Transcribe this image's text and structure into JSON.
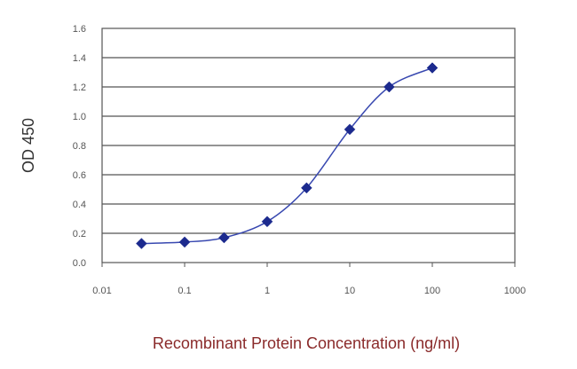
{
  "chart_data": {
    "type": "scatter",
    "title": "",
    "xlabel": "Recombinant Protein Concentration (ng/ml)",
    "ylabel": "OD 450",
    "x_scale": "log",
    "xlim": [
      0.01,
      1000
    ],
    "ylim": [
      0.0,
      1.6
    ],
    "x_ticks": [
      "0.01",
      "0.1",
      "1",
      "10",
      "100",
      "1000"
    ],
    "y_ticks": [
      "0.0",
      "0.2",
      "0.4",
      "0.6",
      "0.8",
      "1.0",
      "1.2",
      "1.4",
      "1.6"
    ],
    "grid": "horizontal",
    "legend": "none",
    "series": [
      {
        "x": [
          0.03,
          0.1,
          0.3,
          1,
          3,
          10,
          30,
          100
        ],
        "y": [
          0.13,
          0.14,
          0.17,
          0.28,
          0.51,
          0.91,
          1.2,
          1.33
        ],
        "marker": "diamond",
        "fitted_curve": true,
        "marker_color": "#1c2a8e",
        "line_color": "#3848b0"
      }
    ],
    "colors": {
      "plot_background": "#ffffff",
      "frame": "#555555",
      "gridline": "#555555",
      "tick_label": "#555555",
      "x_axis_label": "#8a2a2a",
      "y_axis_label": "#333333"
    }
  }
}
